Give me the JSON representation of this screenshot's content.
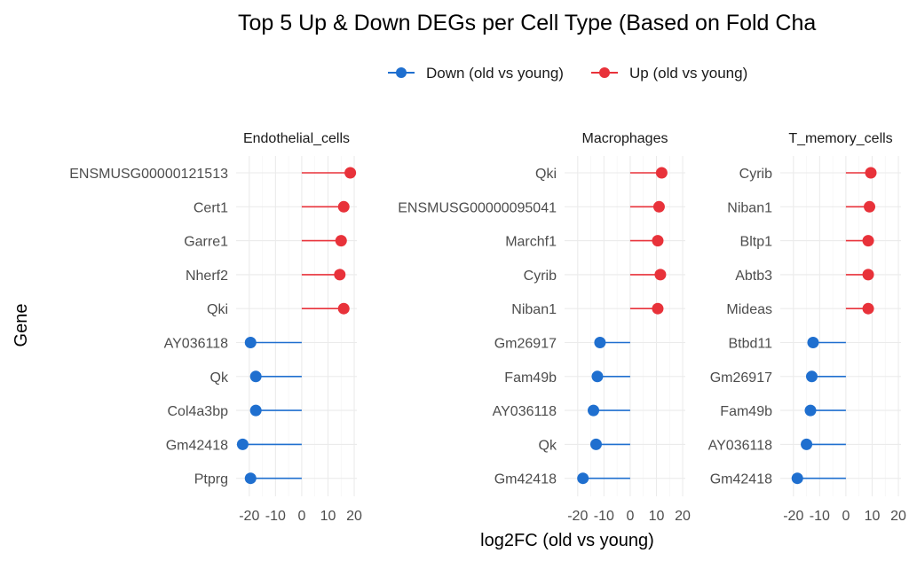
{
  "chart_data": {
    "type": "lollipop",
    "title": "Top 5 Up & Down DEGs per Cell Type (Based on Fold Cha",
    "xlabel": "log2FC (old vs young)",
    "ylabel": "Gene",
    "legend": {
      "position": "top",
      "items": [
        {
          "label": "Down (old vs young)",
          "color": "#1f6fcf"
        },
        {
          "label": "Up (old vs young)",
          "color": "#e8323a"
        }
      ]
    },
    "xlim": [
      -25,
      21
    ],
    "x_ticks": [
      "-20",
      "-10",
      "0",
      "10",
      "20"
    ],
    "grid": true,
    "panels": [
      {
        "name": "Endothelial_cells",
        "strip_label": "Endothelial_cells",
        "genes": [
          {
            "gene": "ENSMUSG00000121513",
            "log2fc": 18.5,
            "direction": "Up"
          },
          {
            "gene": "Cert1",
            "log2fc": 16.0,
            "direction": "Up"
          },
          {
            "gene": "Garre1",
            "log2fc": 15.0,
            "direction": "Up"
          },
          {
            "gene": "Nherf2",
            "log2fc": 14.5,
            "direction": "Up"
          },
          {
            "gene": "Qki",
            "log2fc": 16.0,
            "direction": "Up"
          },
          {
            "gene": "AY036118",
            "log2fc": -19.5,
            "direction": "Down"
          },
          {
            "gene": "Qk",
            "log2fc": -17.5,
            "direction": "Down"
          },
          {
            "gene": "Col4a3bp",
            "log2fc": -17.5,
            "direction": "Down"
          },
          {
            "gene": "Gm42418",
            "log2fc": -22.5,
            "direction": "Down"
          },
          {
            "gene": "Ptprg",
            "log2fc": -19.5,
            "direction": "Down"
          }
        ]
      },
      {
        "name": "Macrophages",
        "strip_label": "Macrophages",
        "genes": [
          {
            "gene": "Qki",
            "log2fc": 12.0,
            "direction": "Up"
          },
          {
            "gene": "ENSMUSG00000095041",
            "log2fc": 11.0,
            "direction": "Up"
          },
          {
            "gene": "Marchf1",
            "log2fc": 10.5,
            "direction": "Up"
          },
          {
            "gene": "Cyrib",
            "log2fc": 11.5,
            "direction": "Up"
          },
          {
            "gene": "Niban1",
            "log2fc": 10.5,
            "direction": "Up"
          },
          {
            "gene": "Gm26917",
            "log2fc": -11.5,
            "direction": "Down"
          },
          {
            "gene": "Fam49b",
            "log2fc": -12.5,
            "direction": "Down"
          },
          {
            "gene": "AY036118",
            "log2fc": -14.0,
            "direction": "Down"
          },
          {
            "gene": "Qk",
            "log2fc": -13.0,
            "direction": "Down"
          },
          {
            "gene": "Gm42418",
            "log2fc": -18.0,
            "direction": "Down"
          }
        ]
      },
      {
        "name": "T_memory_cells",
        "strip_label": "T_memory_cells",
        "genes": [
          {
            "gene": "Cyrib",
            "log2fc": 9.5,
            "direction": "Up"
          },
          {
            "gene": "Niban1",
            "log2fc": 9.0,
            "direction": "Up"
          },
          {
            "gene": "Bltp1",
            "log2fc": 8.5,
            "direction": "Up"
          },
          {
            "gene": "Abtb3",
            "log2fc": 8.5,
            "direction": "Up"
          },
          {
            "gene": "Mideas",
            "log2fc": 8.5,
            "direction": "Up"
          },
          {
            "gene": "Btbd11",
            "log2fc": -12.5,
            "direction": "Down"
          },
          {
            "gene": "Gm26917",
            "log2fc": -13.0,
            "direction": "Down"
          },
          {
            "gene": "Fam49b",
            "log2fc": -13.5,
            "direction": "Down"
          },
          {
            "gene": "AY036118",
            "log2fc": -15.0,
            "direction": "Down"
          },
          {
            "gene": "Gm42418",
            "log2fc": -18.5,
            "direction": "Down"
          }
        ]
      }
    ]
  }
}
